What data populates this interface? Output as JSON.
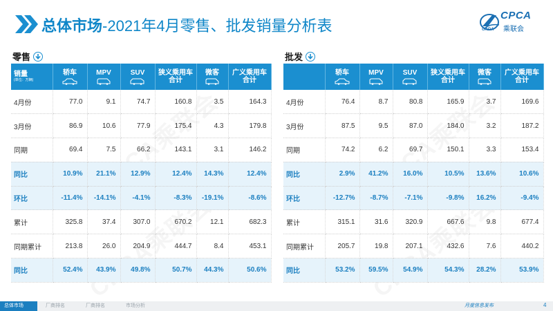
{
  "title": {
    "prefix": "总体市场",
    "suffix": "-2021年4月零售、批发销量分析表"
  },
  "logo": {
    "text": "CPCA",
    "sub": "乘联会",
    "small": "CADA"
  },
  "retail": {
    "label": "零售",
    "headers": {
      "first": "销量",
      "unit": "(单位：万辆)",
      "cols": [
        "轿车",
        "MPV",
        "SUV",
        "狭义乘用车合计",
        "微客",
        "广义乘用车合计"
      ]
    },
    "rows": [
      {
        "label": "4月份",
        "values": [
          "77.0",
          "9.1",
          "74.7",
          "160.8",
          "3.5",
          "164.3"
        ],
        "type": "num"
      },
      {
        "label": "3月份",
        "values": [
          "86.9",
          "10.6",
          "77.9",
          "175.4",
          "4.3",
          "179.8"
        ],
        "type": "num"
      },
      {
        "label": "同期",
        "values": [
          "69.4",
          "7.5",
          "66.2",
          "143.1",
          "3.1",
          "146.2"
        ],
        "type": "num"
      },
      {
        "label": "同比",
        "values": [
          "10.9%",
          "21.1%",
          "12.9%",
          "12.4%",
          "14.3%",
          "12.4%"
        ],
        "type": "pct"
      },
      {
        "label": "环比",
        "values": [
          "-11.4%",
          "-14.1%",
          "-4.1%",
          "-8.3%",
          "-19.1%",
          "-8.6%"
        ],
        "type": "pct"
      },
      {
        "label": "累计",
        "values": [
          "325.8",
          "37.4",
          "307.0",
          "670.2",
          "12.1",
          "682.3"
        ],
        "type": "num"
      },
      {
        "label": "同期累计",
        "values": [
          "213.8",
          "26.0",
          "204.9",
          "444.7",
          "8.4",
          "453.1"
        ],
        "type": "num"
      },
      {
        "label": "同比",
        "values": [
          "52.4%",
          "43.9%",
          "49.8%",
          "50.7%",
          "44.3%",
          "50.6%"
        ],
        "type": "pct"
      }
    ]
  },
  "wholesale": {
    "label": "批发",
    "headers": {
      "first": "",
      "unit": "",
      "cols": [
        "轿车",
        "MPV",
        "SUV",
        "狭义乘用车合计",
        "微客",
        "广义乘用车合计"
      ]
    },
    "rows": [
      {
        "label": "4月份",
        "values": [
          "76.4",
          "8.7",
          "80.8",
          "165.9",
          "3.7",
          "169.6"
        ],
        "type": "num"
      },
      {
        "label": "3月份",
        "values": [
          "87.5",
          "9.5",
          "87.0",
          "184.0",
          "3.2",
          "187.2"
        ],
        "type": "num"
      },
      {
        "label": "同期",
        "values": [
          "74.2",
          "6.2",
          "69.7",
          "150.1",
          "3.3",
          "153.4"
        ],
        "type": "num"
      },
      {
        "label": "同比",
        "values": [
          "2.9%",
          "41.2%",
          "16.0%",
          "10.5%",
          "13.6%",
          "10.6%"
        ],
        "type": "pct"
      },
      {
        "label": "环比",
        "values": [
          "-12.7%",
          "-8.7%",
          "-7.1%",
          "-9.8%",
          "16.2%",
          "-9.4%"
        ],
        "type": "pct"
      },
      {
        "label": "累计",
        "values": [
          "315.1",
          "31.6",
          "320.9",
          "667.6",
          "9.8",
          "677.4"
        ],
        "type": "num"
      },
      {
        "label": "同期累计",
        "values": [
          "205.7",
          "19.8",
          "207.1",
          "432.6",
          "7.6",
          "440.2"
        ],
        "type": "num"
      },
      {
        "label": "同比",
        "values": [
          "53.2%",
          "59.5%",
          "54.9%",
          "54.3%",
          "28.2%",
          "53.9%"
        ],
        "type": "pct"
      }
    ]
  },
  "footer": {
    "tabs": [
      "总体市场",
      "厂商排名",
      "厂商排名",
      "市场分析"
    ],
    "caption": "月度信息发布",
    "page": "4"
  },
  "watermark": "CPCA乘联会",
  "colors": {
    "accent": "#1b8fd0",
    "title": "#0f86c8",
    "pct_text": "#1b7fc0",
    "pct_bg": "#e6f3fb"
  },
  "icons": {
    "section": "down-arrow-circle-icon",
    "header_vehicle": "car-icon",
    "chevron": "double-chevron-icon"
  }
}
